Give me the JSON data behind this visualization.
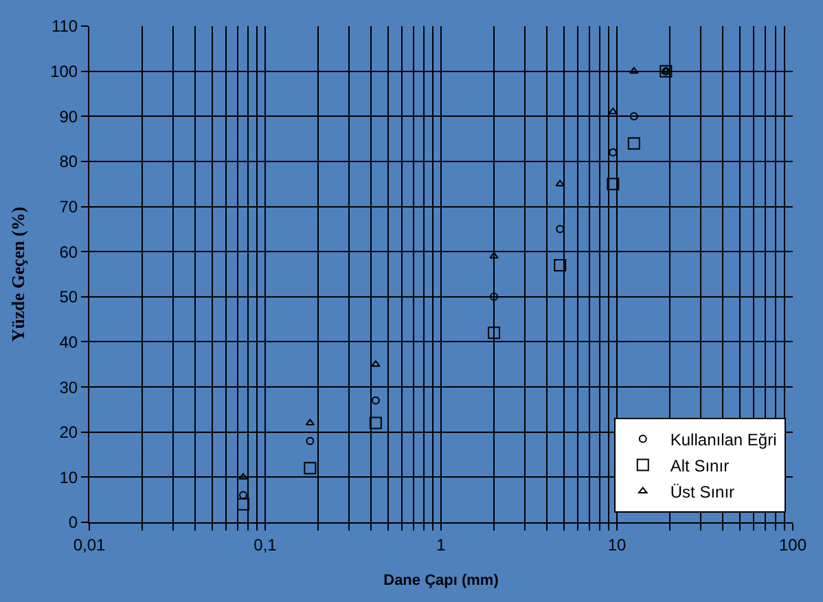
{
  "chart_data": {
    "type": "scatter",
    "xlabel": "Dane Çapı (mm)",
    "ylabel": "Yüzde Geçen (%)",
    "log": "x",
    "grid": true,
    "legend": "bottom right",
    "x": [
      0.075,
      0.18,
      0.425,
      2,
      4.75,
      9.5,
      12.5,
      19
    ],
    "xlim": [
      0.01,
      100
    ],
    "xticks": [
      {
        "value": 0.01,
        "label": "0,01"
      },
      {
        "value": 0.02,
        "label": null
      },
      {
        "value": 0.03,
        "label": null
      },
      {
        "value": 0.04,
        "label": null
      },
      {
        "value": 0.05,
        "label": null
      },
      {
        "value": 0.06,
        "label": null
      },
      {
        "value": 0.07,
        "label": null
      },
      {
        "value": 0.08,
        "label": null
      },
      {
        "value": 0.09,
        "label": null
      },
      {
        "value": 0.1,
        "label": "0,1"
      },
      {
        "value": 0.2,
        "label": null
      },
      {
        "value": 0.3,
        "label": null
      },
      {
        "value": 0.4,
        "label": null
      },
      {
        "value": 0.5,
        "label": null
      },
      {
        "value": 0.6,
        "label": null
      },
      {
        "value": 0.7,
        "label": null
      },
      {
        "value": 0.8,
        "label": null
      },
      {
        "value": 0.9,
        "label": null
      },
      1,
      {
        "value": 2,
        "label": null
      },
      {
        "value": 3,
        "label": null
      },
      {
        "value": 4,
        "label": null
      },
      {
        "value": 5,
        "label": null
      },
      {
        "value": 6,
        "label": null
      },
      {
        "value": 7,
        "label": null
      },
      {
        "value": 8,
        "label": null
      },
      {
        "value": 9,
        "label": null
      },
      10,
      {
        "value": 20,
        "label": null
      },
      {
        "value": 30,
        "label": null
      },
      {
        "value": 40,
        "label": null
      },
      {
        "value": 50,
        "label": null
      },
      {
        "value": 60,
        "label": null
      },
      {
        "value": 70,
        "label": null
      },
      {
        "value": 80,
        "label": null
      },
      {
        "value": 90,
        "label": null
      },
      100
    ],
    "ylim": [
      0,
      110
    ],
    "yticks": [
      0,
      10,
      20,
      30,
      40,
      50,
      60,
      70,
      80,
      90,
      100,
      110
    ],
    "series": [
      {
        "name": "Kullanılan Eğri",
        "color": "#000000",
        "marker": "circle",
        "values": [
          6,
          18,
          27,
          50,
          65,
          82,
          90,
          100
        ]
      },
      {
        "name": "Alt Sınır",
        "color": "#000000",
        "marker": "square",
        "values": [
          4,
          12,
          22,
          42,
          57,
          75,
          84,
          100
        ]
      },
      {
        "name": "Üst Sınır",
        "color": "#000000",
        "marker": "triangle",
        "values": [
          10,
          22,
          35,
          59,
          75,
          91,
          100,
          100
        ]
      }
    ]
  }
}
